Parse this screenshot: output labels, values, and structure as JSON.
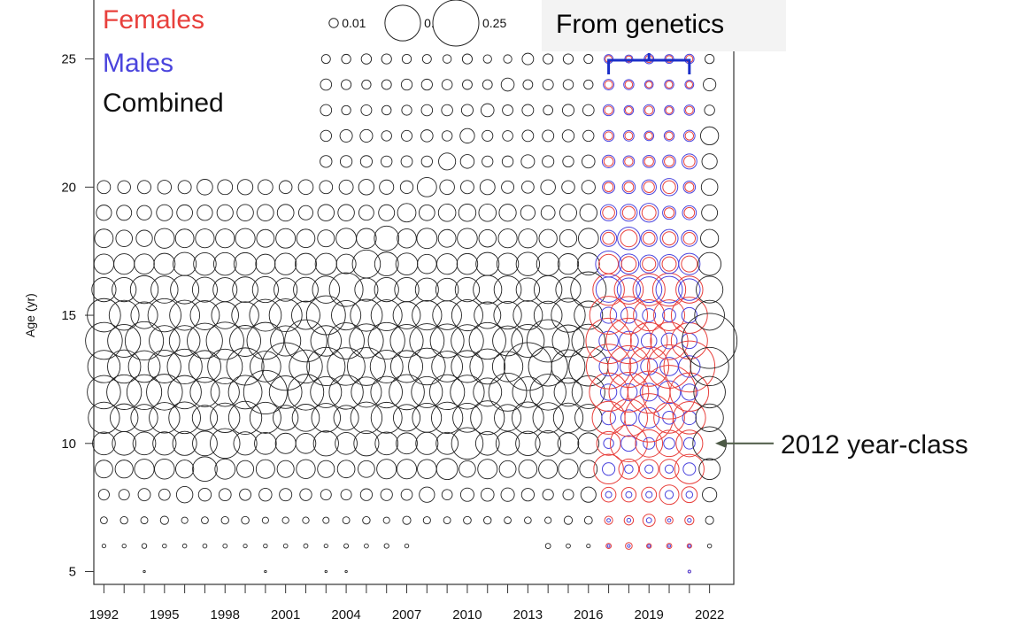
{
  "legend": {
    "females": "Females",
    "males": "Males",
    "combined": "Combined",
    "size_labels": [
      "0.01",
      "0.15",
      "0.25"
    ],
    "size_values": [
      0.01,
      0.15,
      0.25
    ]
  },
  "annotations": {
    "genetics": "From genetics",
    "year_class": "2012 year-class"
  },
  "colors": {
    "female": "#e8403c",
    "male": "#4a44dd",
    "combined": "#222222",
    "bracket": "#1a2ec8",
    "arrow": "#4d5a46"
  },
  "chart_data": {
    "type": "scatter",
    "subtype": "bubble",
    "ylabel": "Age (yr)",
    "xlabel": "",
    "x_ticks": [
      1992,
      1995,
      1998,
      2001,
      2004,
      2007,
      2010,
      2013,
      2016,
      2019,
      2022
    ],
    "y_ticks": [
      5,
      10,
      15,
      20,
      25
    ],
    "xlim": [
      1991.5,
      2023.2
    ],
    "ylim": [
      4.5,
      27.3
    ],
    "series": [
      {
        "name": "Females",
        "years": [
          2017,
          2022
        ]
      },
      {
        "name": "Males",
        "years": [
          2017,
          2022
        ]
      },
      {
        "name": "Combined",
        "years": [
          1992,
          2022
        ]
      }
    ],
    "bubble_proportions_note": "Circle area is proportional to proportion-at-age; per-cell values estimated from circle sizes",
    "profile": [
      0,
      0.002,
      0.006,
      0.017,
      0.039,
      0.062,
      0.095,
      0.125,
      0.145,
      0.14,
      0.105,
      0.078,
      0.055,
      0.04,
      0.03,
      0.023,
      0.018,
      0.015,
      0.013,
      0.012,
      0.01
    ],
    "profile_ages": [
      5,
      6,
      7,
      8,
      9,
      10,
      11,
      12,
      13,
      14,
      15,
      16,
      17,
      18,
      19,
      20,
      21,
      22,
      23,
      24,
      25
    ],
    "year_class_highlight": 2012
  }
}
